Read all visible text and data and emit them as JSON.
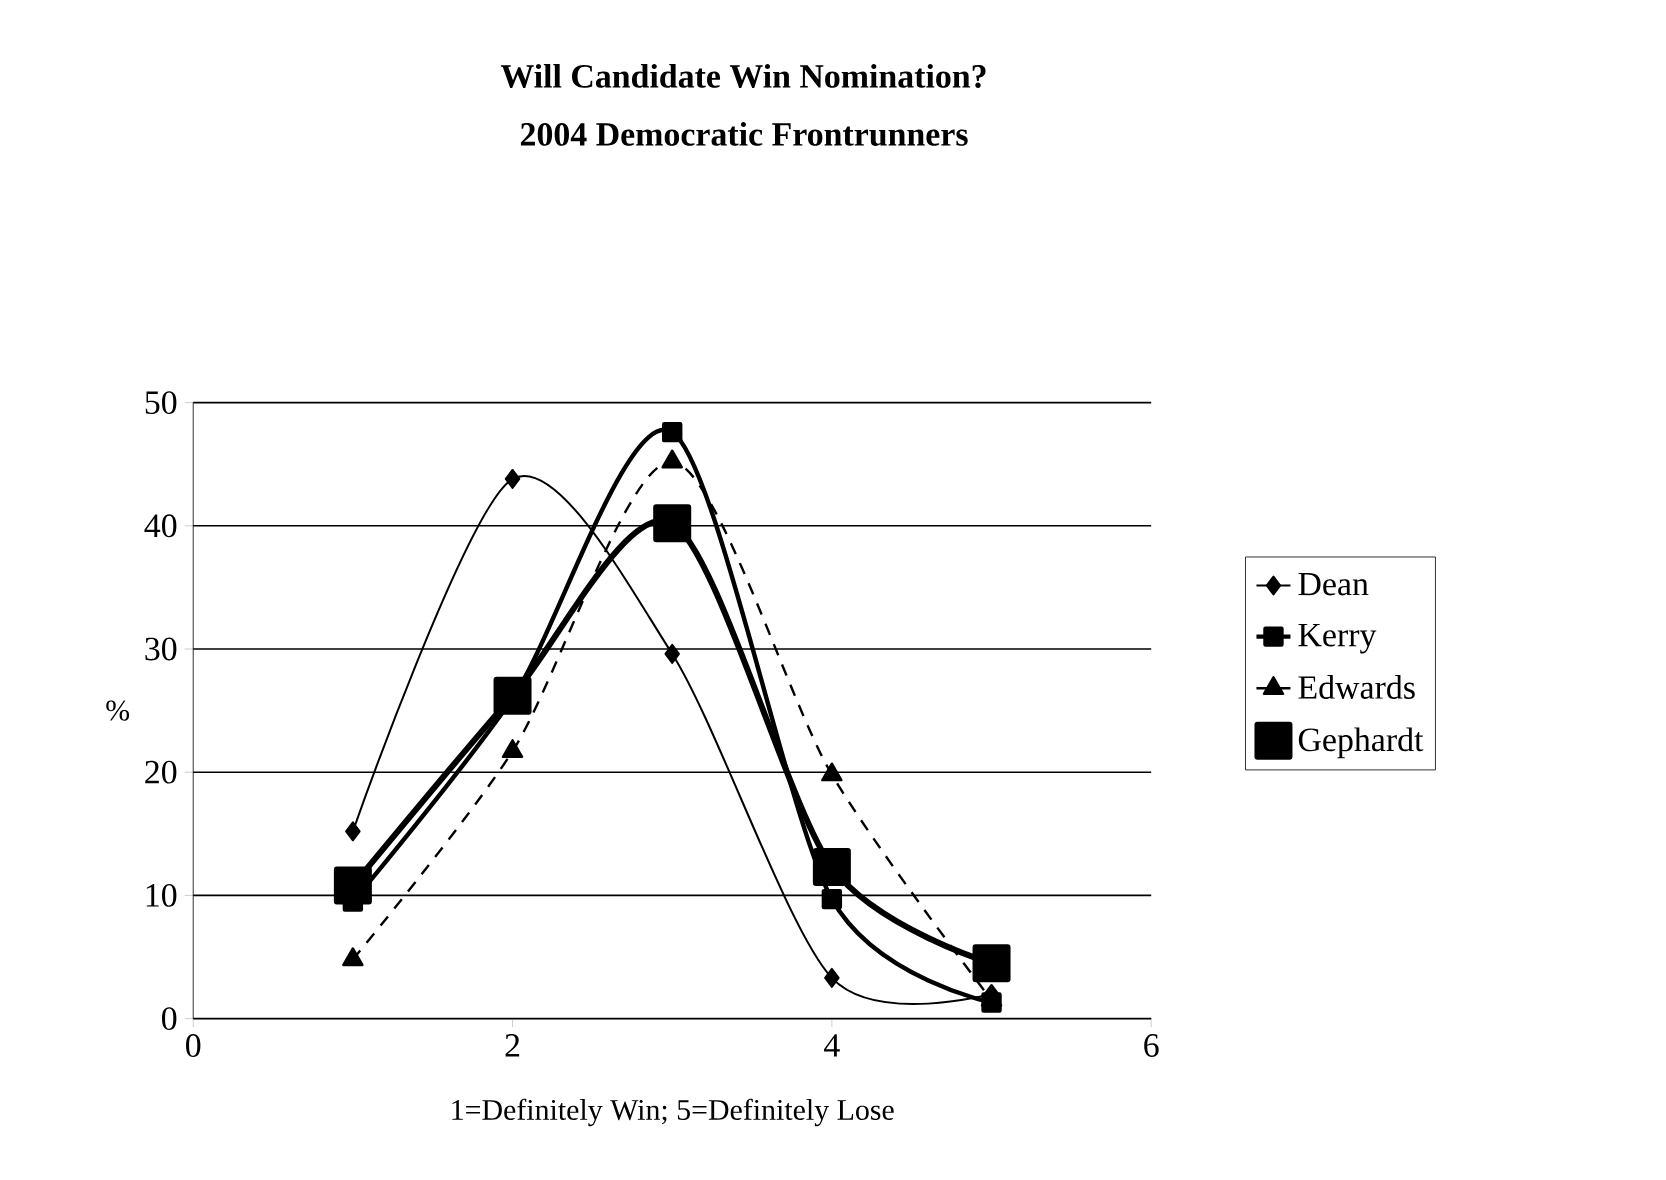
{
  "chart_data": {
    "type": "line",
    "title": "Will Candidate Win Nomination?",
    "subtitle": "2004 Democratic Frontrunners",
    "xlabel": "1=Definitely Win; 5=Definitely Lose",
    "ylabel": "%",
    "x": [
      1,
      2,
      3,
      4,
      5
    ],
    "series": [
      {
        "name": "Dean",
        "color": "#000000",
        "marker": "diamond",
        "line_style": "solid",
        "values": [
          15.2,
          43.8,
          29.6,
          3.3,
          2.0
        ]
      },
      {
        "name": "Kerry",
        "color": "#000000",
        "marker": "square",
        "line_style": "solid",
        "values": [
          9.5,
          26.0,
          47.6,
          9.7,
          1.3
        ]
      },
      {
        "name": "Edwards",
        "color": "#000000",
        "marker": "triangle",
        "line_style": "dashed",
        "values": [
          4.8,
          21.7,
          45.2,
          19.8,
          1.5
        ]
      },
      {
        "name": "Gephardt",
        "color": "#000000",
        "marker": "square",
        "line_style": "solid",
        "values": [
          10.8,
          26.2,
          40.2,
          12.3,
          4.5
        ]
      }
    ],
    "xlim": [
      0,
      6
    ],
    "xticks": [
      0,
      2,
      4,
      6
    ],
    "ylim": [
      0,
      50
    ],
    "yticks": [
      0,
      10,
      20,
      30,
      40,
      50
    ],
    "grid": "y",
    "legend": "right"
  }
}
